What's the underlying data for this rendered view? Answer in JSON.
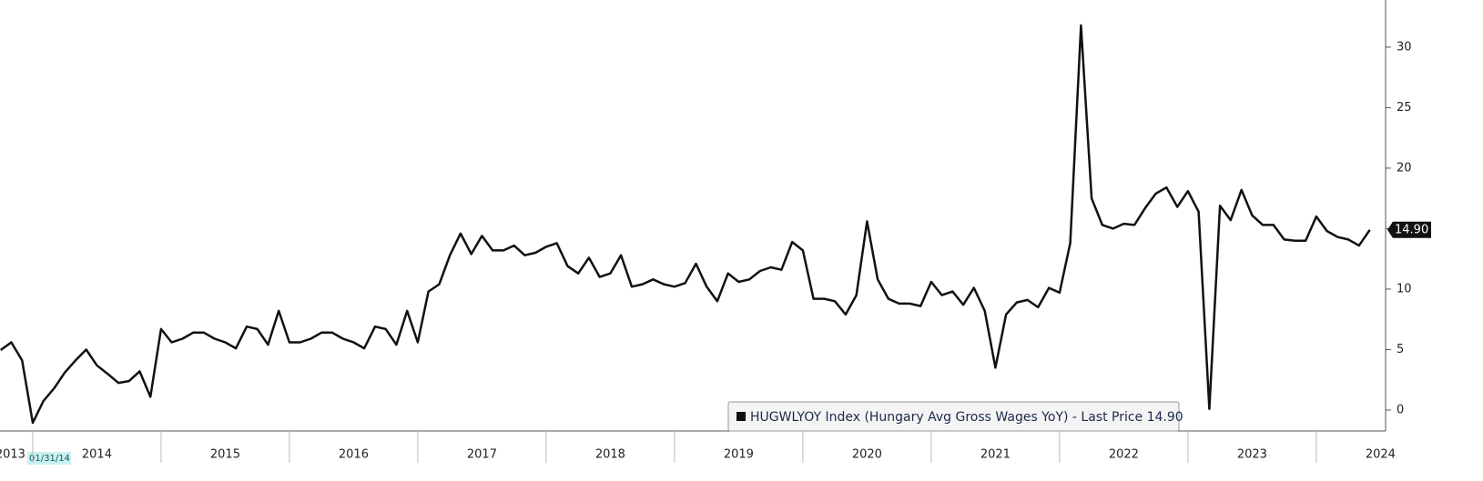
{
  "chart_data": {
    "type": "line",
    "x": [
      2013.75,
      2013.833,
      2013.917,
      2014,
      2014.083,
      2014.167,
      2014.25,
      2014.333,
      2014.417,
      2014.5,
      2014.583,
      2014.667,
      2014.75,
      2014.833,
      2014.917,
      2015,
      2015.083,
      2015.167,
      2015.25,
      2015.333,
      2015.417,
      2015.5,
      2015.583,
      2015.667,
      2015.75,
      2015.833,
      2015.917,
      2016,
      2016.083,
      2016.167,
      2016.25,
      2016.333,
      2016.417,
      2016.5,
      2016.583,
      2016.667,
      2016.75,
      2016.833,
      2016.917,
      2017,
      2017.083,
      2017.167,
      2017.25,
      2017.333,
      2017.417,
      2017.5,
      2017.583,
      2017.667,
      2017.75,
      2017.833,
      2017.917,
      2018,
      2018.083,
      2018.167,
      2018.25,
      2018.333,
      2018.417,
      2018.5,
      2018.583,
      2018.667,
      2018.75,
      2018.833,
      2018.917,
      2019,
      2019.083,
      2019.167,
      2019.25,
      2019.333,
      2019.417,
      2019.5,
      2019.583,
      2019.667,
      2019.75,
      2019.833,
      2019.917,
      2020,
      2020.083,
      2020.167,
      2020.25,
      2020.333,
      2020.417,
      2020.5,
      2020.583,
      2020.667,
      2020.75,
      2020.833,
      2020.917,
      2021,
      2021.083,
      2021.167,
      2021.25,
      2021.333,
      2021.417,
      2021.5,
      2021.583,
      2021.667,
      2021.75,
      2021.833,
      2021.917,
      2022,
      2022.083,
      2022.167,
      2022.25,
      2022.333,
      2022.417,
      2022.5,
      2022.583,
      2022.667,
      2022.75,
      2022.833,
      2022.917,
      2023,
      2023.083,
      2023.167,
      2023.25,
      2023.333,
      2023.417,
      2023.5,
      2023.583,
      2023.667,
      2023.75,
      2023.833,
      2023.917,
      2024,
      2024.083,
      2024.167,
      2024.25,
      2024.333,
      2024.417
    ],
    "values": [
      4.96,
      5.6,
      4.1,
      -1.05,
      0.75,
      1.8,
      3.1,
      4.1,
      5.0,
      3.7,
      3.0,
      2.25,
      2.4,
      3.2,
      1.1,
      6.7,
      5.6,
      5.9,
      6.4,
      6.4,
      5.9,
      5.6,
      5.1,
      6.9,
      6.7,
      5.4,
      8.2,
      5.6,
      5.6,
      5.9,
      6.4,
      6.4,
      5.9,
      5.6,
      5.1,
      6.9,
      6.7,
      5.4,
      8.2,
      5.6,
      9.8,
      10.4,
      12.8,
      14.6,
      12.9,
      14.4,
      13.2,
      13.2,
      13.6,
      12.8,
      13.0,
      13.5,
      13.8,
      11.9,
      11.3,
      12.6,
      11.0,
      11.3,
      12.8,
      10.2,
      10.4,
      10.8,
      10.4,
      10.2,
      10.5,
      12.1,
      10.2,
      9.0,
      11.3,
      10.6,
      10.8,
      11.5,
      11.8,
      11.6,
      13.9,
      13.2,
      9.2,
      9.2,
      9.0,
      7.9,
      9.5,
      15.6,
      10.8,
      9.2,
      8.8,
      8.8,
      8.6,
      10.6,
      9.5,
      9.8,
      8.7,
      10.1,
      8.2,
      3.5,
      7.9,
      8.9,
      9.1,
      8.5,
      10.1,
      9.7,
      13.8,
      31.8,
      17.5,
      15.3,
      15.0,
      15.4,
      15.3,
      16.7,
      17.9,
      18.4,
      16.8,
      18.1,
      16.4,
      0.1,
      16.9,
      15.7,
      18.2,
      16.1,
      15.3,
      15.3,
      14.1,
      14.0,
      14.0,
      16.0,
      14.8,
      14.3,
      14.1,
      13.6,
      14.9
    ],
    "color": "#111111",
    "legend": "HUGWLYOY Index (Hungary Avg Gross Wages YoY) - Last Price 14.90",
    "last_value_label": "14.90",
    "cursor_label": "01/31/14",
    "xlim": [
      2013.745,
      2024.54
    ],
    "xticks": [
      {
        "value": 2013,
        "label": "2013"
      },
      {
        "value": 2014,
        "label": "2014"
      },
      {
        "value": 2015,
        "label": "2015"
      },
      {
        "value": 2016,
        "label": "2016"
      },
      {
        "value": 2017,
        "label": "2017"
      },
      {
        "value": 2018,
        "label": "2018"
      },
      {
        "value": 2019,
        "label": "2019"
      },
      {
        "value": 2020,
        "label": "2020"
      },
      {
        "value": 2021,
        "label": "2021"
      },
      {
        "value": 2022,
        "label": "2022"
      },
      {
        "value": 2023,
        "label": "2023"
      },
      {
        "value": 2024,
        "label": "2024"
      }
    ],
    "ylim": [
      -1.73,
      33.9
    ],
    "yticks": [
      0,
      5,
      10,
      15,
      20,
      25,
      30
    ]
  }
}
